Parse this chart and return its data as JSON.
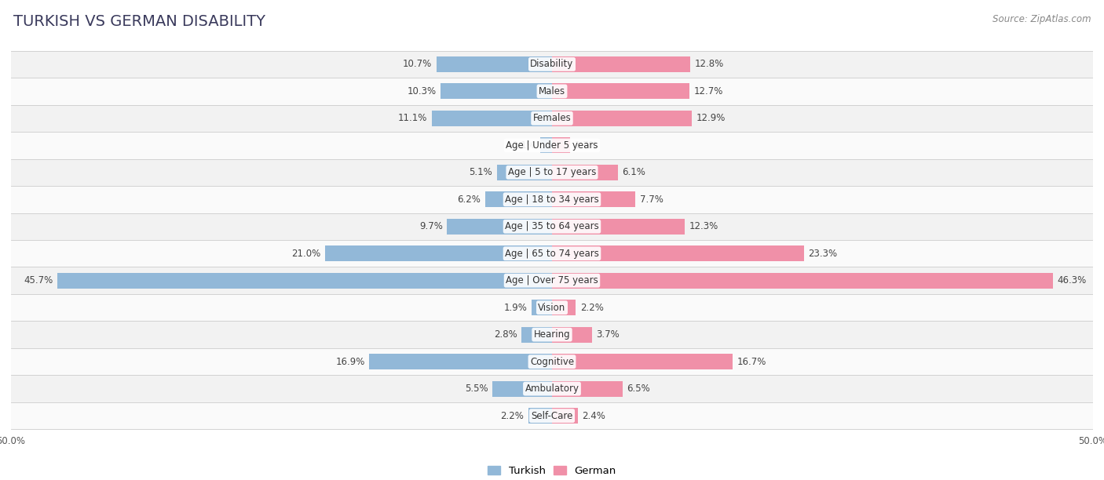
{
  "title": "TURKISH VS GERMAN DISABILITY",
  "source": "Source: ZipAtlas.com",
  "categories": [
    "Disability",
    "Males",
    "Females",
    "Age | Under 5 years",
    "Age | 5 to 17 years",
    "Age | 18 to 34 years",
    "Age | 35 to 64 years",
    "Age | 65 to 74 years",
    "Age | Over 75 years",
    "Vision",
    "Hearing",
    "Cognitive",
    "Ambulatory",
    "Self-Care"
  ],
  "turkish_values": [
    10.7,
    10.3,
    11.1,
    1.1,
    5.1,
    6.2,
    9.7,
    21.0,
    45.7,
    1.9,
    2.8,
    16.9,
    5.5,
    2.2
  ],
  "german_values": [
    12.8,
    12.7,
    12.9,
    1.7,
    6.1,
    7.7,
    12.3,
    23.3,
    46.3,
    2.2,
    3.7,
    16.7,
    6.5,
    2.4
  ],
  "turkish_color": "#92b8d8",
  "german_color": "#f090a8",
  "turkish_color_strong": "#6a9fc8",
  "german_color_strong": "#e8607a",
  "bg_odd": "#f2f2f2",
  "bg_even": "#fafafa",
  "axis_max": 50.0,
  "bar_height": 0.58,
  "title_fontsize": 14,
  "label_fontsize": 8.5,
  "value_fontsize": 8.5,
  "legend_fontsize": 9.5,
  "source_fontsize": 8.5
}
